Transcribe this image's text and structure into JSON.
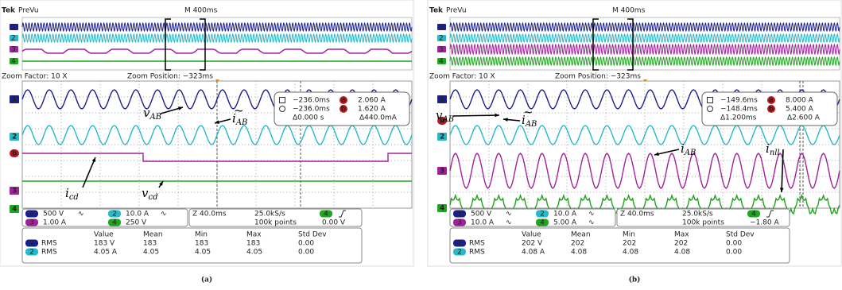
{
  "panels": [
    {
      "header": {
        "brand": "Tek",
        "mode": "PreVu",
        "timebase": "M 400ms"
      },
      "overview_channels": [
        "1",
        "2",
        "3",
        "4"
      ],
      "zoom": {
        "factor": "Zoom Factor: 10 X",
        "position": "Zoom Position: −323ms"
      },
      "channel_markers": [
        "1",
        "2",
        "b",
        "3",
        "4"
      ],
      "cursor": {
        "rows": [
          {
            "time": "−236.0ms",
            "tag": "a",
            "value": "2.060 A"
          },
          {
            "time": "−236.0ms",
            "tag": "b",
            "value": "1.620 A"
          }
        ],
        "deltas": [
          "Δ0.000 s",
          "Δ440.0mA"
        ]
      },
      "annotations": [
        {
          "symbol": "v",
          "sub": "AB"
        },
        {
          "symbol": "i",
          "sub": "AB",
          "accent": "~"
        },
        {
          "symbol": "i",
          "sub": "cd"
        },
        {
          "symbol": "v",
          "sub": "cd"
        }
      ],
      "settings": {
        "channels": [
          {
            "num": "1",
            "scale": "500 V",
            "coupling": "∿"
          },
          {
            "num": "2",
            "scale": "10.0 A",
            "coupling": "∿"
          },
          {
            "num": "3",
            "scale": "1.00 A"
          },
          {
            "num": "4",
            "scale": "250 V"
          }
        ],
        "zoom": "Z 40.0ms",
        "rate": "25.0kS/s",
        "points": "100k points",
        "trigger_source": "4",
        "trigger_level": "0.00 V"
      },
      "measurements": {
        "headers": [
          "Value",
          "Mean",
          "Min",
          "Max",
          "Std Dev"
        ],
        "rows": [
          {
            "channel": "1",
            "type": "RMS",
            "cells": [
              "183 V",
              "183",
              "183",
              "183",
              "0.00"
            ]
          },
          {
            "channel": "2",
            "type": "RMS",
            "cells": [
              "4.05 A",
              "4.05",
              "4.05",
              "4.05",
              "0.00"
            ]
          }
        ]
      },
      "caption": "(a)"
    },
    {
      "header": {
        "brand": "Tek",
        "mode": "PreVu",
        "timebase": "M 400ms"
      },
      "overview_channels": [
        "1",
        "2",
        "3",
        "4"
      ],
      "zoom": {
        "factor": "Zoom Factor: 10 X",
        "position": "Zoom Position: −323ms"
      },
      "channel_markers": [
        "1",
        "b",
        "2",
        "3",
        "4"
      ],
      "cursor": {
        "rows": [
          {
            "time": "−149.6ms",
            "tag": "a",
            "value": "8.000 A"
          },
          {
            "time": "−148.4ms",
            "tag": "b",
            "value": "5.400 A"
          }
        ],
        "deltas": [
          "Δ1.200ms",
          "Δ2.600 A"
        ]
      },
      "annotations": [
        {
          "symbol": "v",
          "sub": "AB"
        },
        {
          "symbol": "i",
          "sub": "AB",
          "accent": "~"
        },
        {
          "symbol": "i",
          "sub": "AB"
        },
        {
          "symbol": "i",
          "sub": "nll"
        }
      ],
      "settings": {
        "channels": [
          {
            "num": "1",
            "scale": "500 V",
            "coupling": "∿"
          },
          {
            "num": "2",
            "scale": "10.0 A",
            "coupling": "∿"
          },
          {
            "num": "3",
            "scale": "10.0 A",
            "coupling": "∿"
          },
          {
            "num": "4",
            "scale": "5.00 A",
            "coupling": "∿"
          }
        ],
        "zoom": "Z 40.0ms",
        "rate": "25.0kS/s",
        "points": "100k points",
        "trigger_source": "4",
        "trigger_level": "−1.80 A"
      },
      "measurements": {
        "headers": [
          "Value",
          "Mean",
          "Min",
          "Max",
          "Std Dev"
        ],
        "rows": [
          {
            "channel": "1",
            "type": "RMS",
            "cells": [
              "202 V",
              "202",
              "202",
              "202",
              "0.00"
            ]
          },
          {
            "channel": "2",
            "type": "RMS",
            "cells": [
              "4.08 A",
              "4.08",
              "4.08",
              "4.08",
              "0.00"
            ]
          }
        ]
      },
      "caption": "(b)"
    }
  ]
}
